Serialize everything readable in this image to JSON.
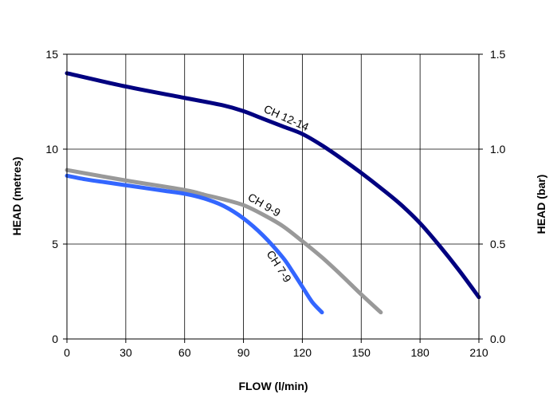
{
  "chart_data": {
    "type": "line",
    "xlabel": "FLOW (l/min)",
    "ylabel": "HEAD (metres)",
    "y2label": "HEAD (bar)",
    "xlim": [
      0,
      210
    ],
    "ylim": [
      0,
      15
    ],
    "y2lim": [
      0.0,
      1.5
    ],
    "x_ticks": [
      0,
      30,
      60,
      90,
      120,
      150,
      180,
      210
    ],
    "y_ticks": [
      0,
      5,
      10,
      15
    ],
    "y2_ticks": [
      "0.0",
      "0.5",
      "1.0",
      "1.5"
    ],
    "grid": true,
    "legend": "none",
    "series": [
      {
        "name": "CH 12-14",
        "color": "#000080",
        "x": [
          0,
          30,
          60,
          80,
          90,
          100,
          110,
          120,
          130,
          140,
          150,
          160,
          170,
          180,
          190,
          200,
          210
        ],
        "y": [
          14.0,
          13.3,
          12.7,
          12.3,
          12.0,
          11.6,
          11.2,
          10.8,
          10.2,
          9.5,
          8.75,
          7.95,
          7.1,
          6.1,
          4.9,
          3.6,
          2.2
        ]
      },
      {
        "name": "CH 9-9",
        "color": "#999999",
        "x": [
          0,
          30,
          60,
          70,
          80,
          90,
          100,
          110,
          120,
          130,
          140,
          150,
          160
        ],
        "y": [
          8.9,
          8.35,
          7.85,
          7.6,
          7.35,
          7.05,
          6.55,
          5.95,
          5.15,
          4.3,
          3.35,
          2.35,
          1.4
        ]
      },
      {
        "name": "CH 7-9",
        "color": "#3366ff",
        "x": [
          0,
          10,
          20,
          30,
          40,
          50,
          60,
          70,
          80,
          90,
          100,
          110,
          115,
          120,
          125,
          130
        ],
        "y": [
          8.6,
          8.4,
          8.25,
          8.1,
          7.95,
          7.8,
          7.65,
          7.4,
          7.0,
          6.35,
          5.45,
          4.3,
          3.55,
          2.75,
          1.95,
          1.4
        ]
      }
    ]
  }
}
